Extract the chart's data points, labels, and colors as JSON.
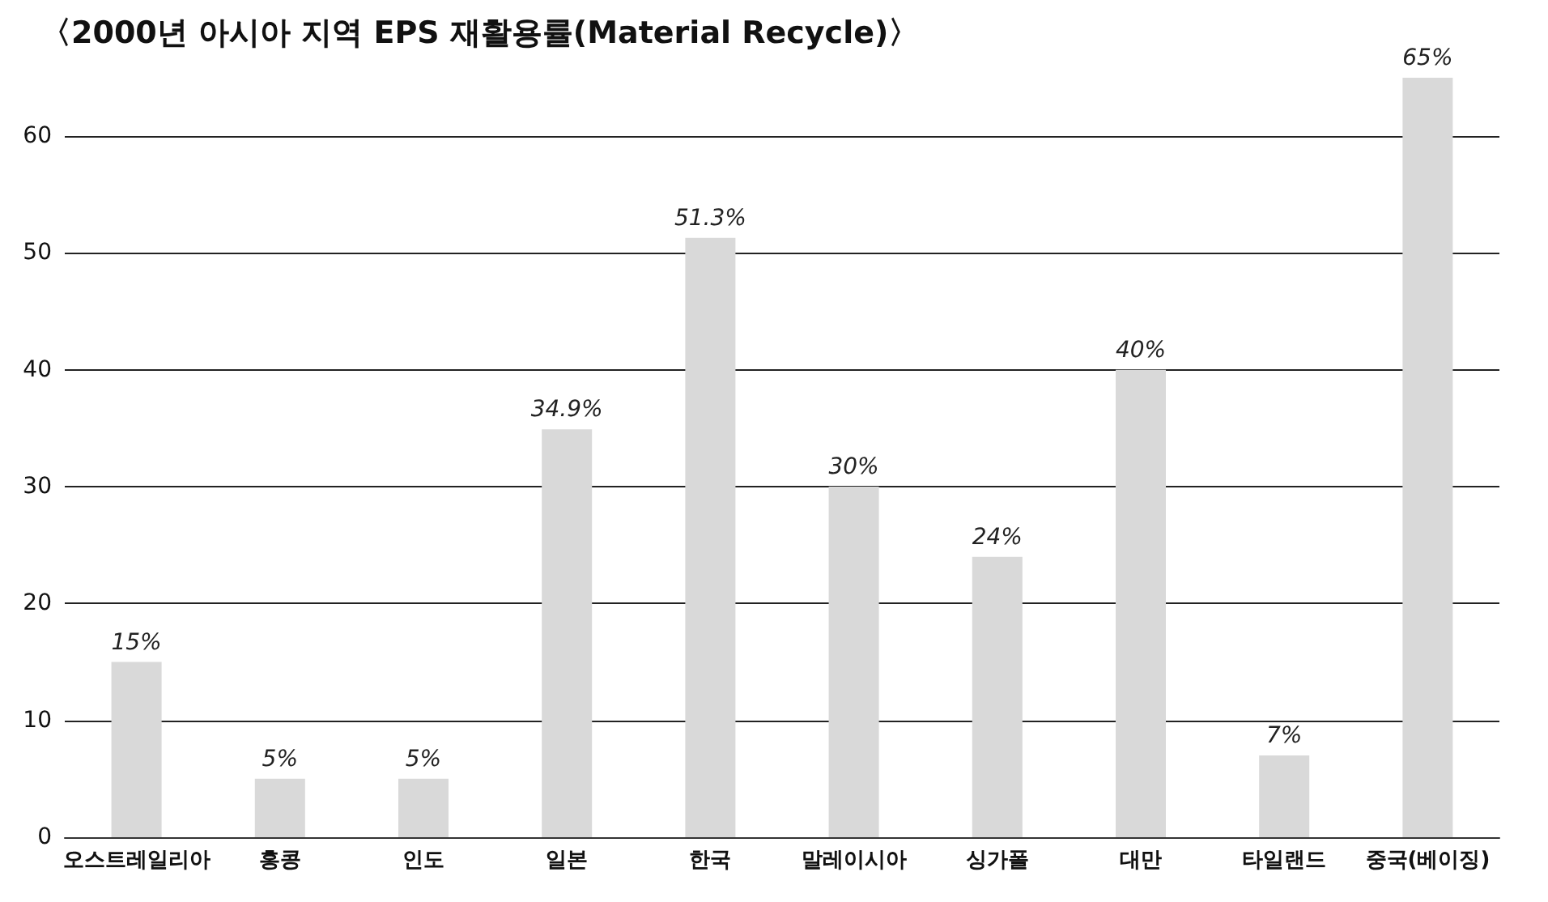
{
  "chart_data": {
    "type": "bar",
    "title": "〈2000년 아시아 지역 EPS 재활용률(Material Recycle)〉",
    "categories": [
      "오스트레일리아",
      "홍콩",
      "인도",
      "일본",
      "한국",
      "말레이시아",
      "싱가폴",
      "대만",
      "타일랜드",
      "중국(베이징)"
    ],
    "values": [
      15,
      5,
      5,
      34.9,
      51.3,
      30,
      24,
      40,
      7,
      65
    ],
    "value_labels": [
      "15%",
      "5%",
      "5%",
      "34.9%",
      "51.3%",
      "30%",
      "24%",
      "40%",
      "7%",
      "65%"
    ],
    "color": "#d9d9d9",
    "ylim": [
      0,
      65
    ],
    "yticks": [
      0,
      10,
      20,
      30,
      40,
      50,
      60
    ],
    "grid": "y"
  }
}
